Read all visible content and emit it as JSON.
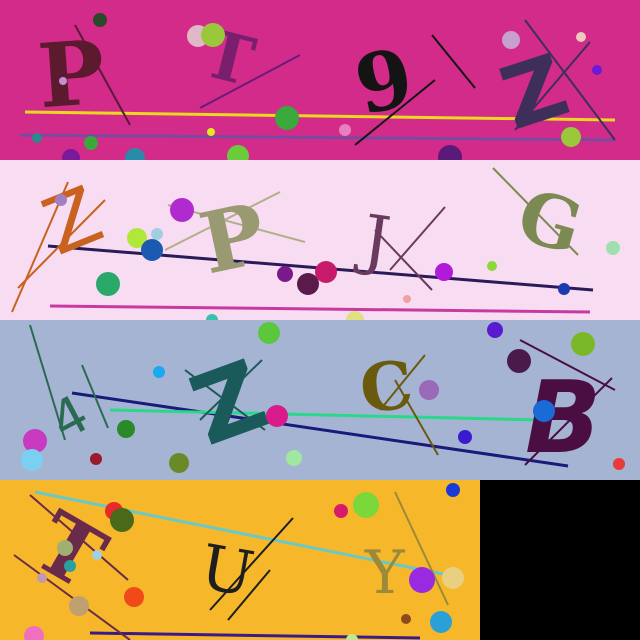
{
  "strips": [
    {
      "background": "#d22b8a",
      "letters": [
        {
          "text": "P",
          "color": "#5c1a2e"
        },
        {
          "text": "T",
          "color": "#7a1e6e"
        },
        {
          "text": "9",
          "color": "#141414"
        },
        {
          "text": "Z",
          "color": "#3d2f5a"
        }
      ]
    },
    {
      "background": "#f8dcf2",
      "letters": [
        {
          "text": "Z",
          "color": "#c8621e"
        },
        {
          "text": "P",
          "color": "#9a9a72"
        },
        {
          "text": "J",
          "color": "#6a3a5e"
        },
        {
          "text": "G",
          "color": "#7a8a52"
        }
      ]
    },
    {
      "background": "#a6b4d4",
      "letters": [
        {
          "text": "4",
          "color": "#2a6a52"
        },
        {
          "text": "Z",
          "color": "#1a5a5a"
        },
        {
          "text": "C",
          "color": "#6a5a0e"
        },
        {
          "text": "B",
          "color": "#4a0e42"
        }
      ]
    },
    {
      "background": "#f6b82a",
      "letters": [
        {
          "text": "T",
          "color": "#6a2a4a"
        },
        {
          "text": "U",
          "color": "#1e1e1e"
        },
        {
          "text": "Y",
          "color": "#9a8a3a"
        }
      ]
    }
  ],
  "filler_color": "#000000"
}
